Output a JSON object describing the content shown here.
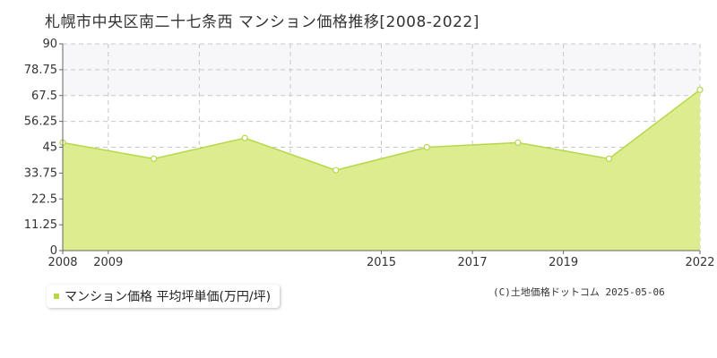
{
  "title": "札幌市中央区南二十七条西 マンション価格推移[2008-2022]",
  "legend_label": "マンション価格 平均坪単価(万円/坪)",
  "copyright": "(C)土地価格ドットコム 2025-05-06",
  "colors": {
    "fill": "#dcec8e",
    "line": "#b5d84a",
    "marker_fill": "#ffffff",
    "grid": "#c8c8c8",
    "band": "#f7f7f9",
    "axis": "#666666",
    "legend_swatch": "#b5d84a"
  },
  "chart_data": {
    "type": "area",
    "title": "札幌市中央区南二十七条西 マンション価格推移[2008-2022]",
    "xlabel": "",
    "ylabel": "",
    "x": [
      2008,
      2009,
      2010,
      2011,
      2012,
      2013,
      2014,
      2015,
      2016,
      2017,
      2018,
      2019,
      2020,
      2021,
      2022
    ],
    "x_tick_labels": [
      "2008",
      "2009",
      "2015",
      "2017",
      "2019",
      "2022"
    ],
    "x_tick_values": [
      2008,
      2009,
      2015,
      2017,
      2019,
      2022
    ],
    "y_tick_labels": [
      "0",
      "11.25",
      "22.5",
      "33.75",
      "45",
      "56.25",
      "67.5",
      "78.75",
      "90"
    ],
    "xlim": [
      2008,
      2022
    ],
    "ylim": [
      0,
      90
    ],
    "grid": true,
    "legend_position": "bottom-left",
    "series": [
      {
        "name": "マンション価格 平均坪単価(万円/坪)",
        "points": [
          {
            "x": 2008,
            "y": 47
          },
          {
            "x": 2010,
            "y": 40
          },
          {
            "x": 2012,
            "y": 49
          },
          {
            "x": 2014,
            "y": 35
          },
          {
            "x": 2016,
            "y": 45
          },
          {
            "x": 2018,
            "y": 47
          },
          {
            "x": 2020,
            "y": 40
          },
          {
            "x": 2022,
            "y": 70
          }
        ]
      }
    ]
  }
}
